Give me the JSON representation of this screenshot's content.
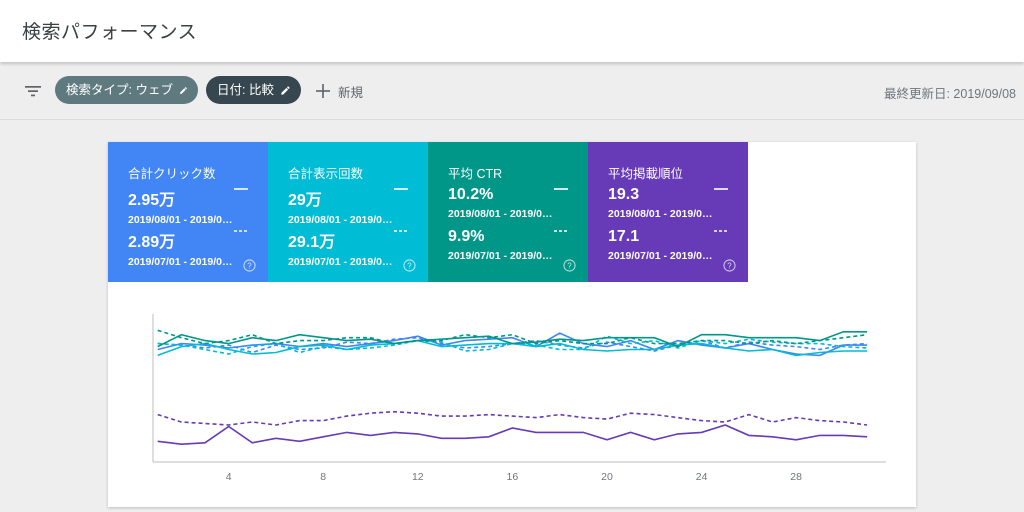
{
  "page": {
    "title": "検索パフォーマンス"
  },
  "toolbar": {
    "filter_icon": "filter-list-icon",
    "chip_type_label": "検索タイプ: ウェブ",
    "chip_date_label": "日付: 比較",
    "new_label": "新規",
    "updated_text": "最終更新日: 2019/09/08"
  },
  "metrics": [
    {
      "label": "合計クリック数",
      "value1": "2.95万",
      "range1": "2019/08/01 - 2019/0…",
      "value2": "2.89万",
      "range2": "2019/07/01 - 2019/0…",
      "color": "#4285f4"
    },
    {
      "label": "合計表示回数",
      "value1": "29万",
      "range1": "2019/08/01 - 2019/0…",
      "value2": "29.1万",
      "range2": "2019/07/01 - 2019/0…",
      "color": "#00bcd4"
    },
    {
      "label": "平均 CTR",
      "value1": "10.2%",
      "range1": "2019/08/01 - 2019/0…",
      "value2": "9.9%",
      "range2": "2019/07/01 - 2019/0…",
      "color": "#009688"
    },
    {
      "label": "平均掲載順位",
      "value1": "19.3",
      "range1": "2019/08/01 - 2019/0…",
      "value2": "17.1",
      "range2": "2019/07/01 - 2019/0…",
      "color": "#673ab7"
    }
  ],
  "chart_data": {
    "type": "line",
    "x": [
      1,
      2,
      3,
      4,
      5,
      6,
      7,
      8,
      9,
      10,
      11,
      12,
      13,
      14,
      15,
      16,
      17,
      18,
      19,
      20,
      21,
      22,
      23,
      24,
      25,
      26,
      27,
      28,
      29,
      30,
      31
    ],
    "xticks": [
      "4",
      "8",
      "12",
      "16",
      "20",
      "24",
      "28"
    ],
    "xtick_values": [
      4,
      8,
      12,
      16,
      20,
      24,
      28
    ],
    "xlim": [
      0.8,
      31.8
    ],
    "ylim": [
      0,
      100
    ],
    "axis_labels_visible": false,
    "series": [
      {
        "color": "#4285f4",
        "dashed": false,
        "values": [
          76,
          80,
          79,
          77,
          79,
          80,
          78,
          80,
          78,
          80,
          82,
          85,
          79,
          82,
          83,
          84,
          78,
          87,
          80,
          78,
          82,
          76,
          82,
          79,
          77,
          80,
          76,
          73,
          72,
          79,
          79
        ]
      },
      {
        "color": "#4285f4",
        "dashed": true,
        "values": [
          80,
          79,
          77,
          79,
          74,
          79,
          76,
          77,
          81,
          80,
          83,
          84,
          80,
          77,
          78,
          80,
          82,
          79,
          77,
          81,
          78,
          75,
          79,
          82,
          77,
          81,
          79,
          78,
          76,
          79,
          80
        ]
      },
      {
        "color": "#00bcd4",
        "dashed": false,
        "values": [
          72,
          78,
          80,
          76,
          73,
          74,
          78,
          79,
          76,
          79,
          80,
          82,
          78,
          79,
          80,
          80,
          78,
          80,
          76,
          75,
          76,
          76,
          79,
          80,
          77,
          75,
          76,
          72,
          74,
          75,
          75
        ]
      },
      {
        "color": "#00bcd4",
        "dashed": true,
        "values": [
          80,
          79,
          76,
          73,
          78,
          80,
          74,
          78,
          76,
          77,
          79,
          82,
          81,
          75,
          76,
          80,
          79,
          76,
          76,
          85,
          80,
          82,
          77,
          82,
          80,
          83,
          81,
          80,
          80,
          78,
          77
        ]
      },
      {
        "color": "#009688",
        "dashed": false,
        "values": [
          78,
          86,
          82,
          80,
          84,
          82,
          86,
          84,
          82,
          83,
          80,
          82,
          83,
          84,
          85,
          80,
          81,
          83,
          82,
          84,
          84,
          84,
          78,
          86,
          86,
          84,
          84,
          84,
          82,
          88,
          88
        ]
      },
      {
        "color": "#009688",
        "dashed": true,
        "values": [
          89,
          84,
          80,
          82,
          86,
          80,
          82,
          82,
          84,
          84,
          80,
          82,
          82,
          86,
          84,
          86,
          80,
          82,
          80,
          80,
          84,
          80,
          80,
          82,
          82,
          80,
          82,
          80,
          82,
          84,
          86
        ]
      },
      {
        "color": "#673ab7",
        "dashed": false,
        "values": [
          14,
          12,
          13,
          24,
          13,
          16,
          14,
          17,
          20,
          18,
          20,
          19,
          16,
          16,
          17,
          23,
          20,
          20,
          20,
          15,
          20,
          15,
          19,
          20,
          25,
          18,
          17,
          15,
          18,
          18,
          17
        ]
      },
      {
        "color": "#673ab7",
        "dashed": true,
        "values": [
          32,
          27,
          26,
          25,
          27,
          25,
          28,
          28,
          31,
          33,
          34,
          33,
          31,
          31,
          32,
          31,
          30,
          32,
          30,
          29,
          33,
          32,
          30,
          28,
          27,
          32,
          27,
          30,
          28,
          27,
          25
        ]
      }
    ]
  }
}
